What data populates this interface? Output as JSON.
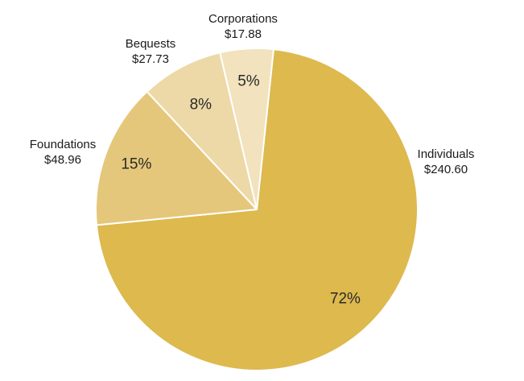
{
  "chart_data": {
    "type": "pie",
    "title": "",
    "colors": [
      "#DDB94E",
      "#E5C77B",
      "#EDD9A7",
      "#F2E2BD"
    ],
    "slices": [
      {
        "label": "Individuals",
        "value": 240.6,
        "value_label": "$240.60",
        "percent_label": "72%"
      },
      {
        "label": "Foundations",
        "value": 48.96,
        "value_label": "$48.96",
        "percent_label": "15%"
      },
      {
        "label": "Bequests",
        "value": 27.73,
        "value_label": "$27.73",
        "percent_label": "8%"
      },
      {
        "label": "Corporations",
        "value": 17.88,
        "value_label": "$17.88",
        "percent_label": "5%"
      }
    ]
  }
}
